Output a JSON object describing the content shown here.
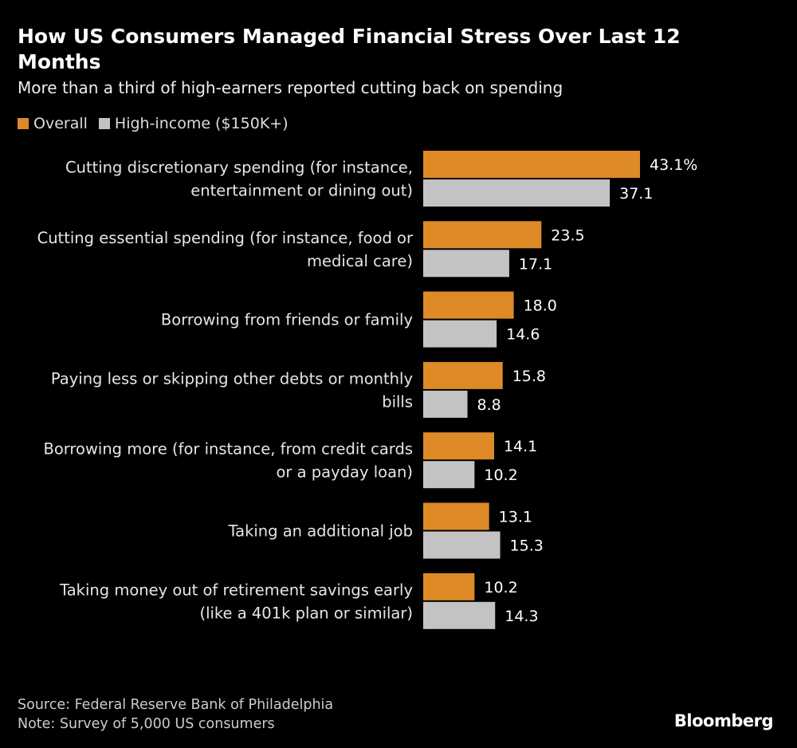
{
  "title": "How US Consumers Managed Financial Stress Over Last 12 Months",
  "subtitle": "More than a third of high-earners reported cutting back on spending",
  "source": "Source: Federal Reserve Bank of Philadelphia",
  "note": "Note: Survey of 5,000 US consumers",
  "logo": "Bloomberg",
  "chart_data": {
    "type": "bar",
    "orientation": "horizontal",
    "title": "How US Consumers Managed Financial Stress Over Last 12 Months",
    "subtitle": "More than a third of high-earners reported cutting back on spending",
    "legend_position": "top-left",
    "grid": false,
    "unit": "%",
    "xlim": [
      0,
      45
    ],
    "categories": [
      [
        "Cutting discretionary spending (for instance,",
        "entertainment or dining out)"
      ],
      [
        "Cutting essential spending (for instance, food or",
        "medical care)"
      ],
      [
        "Borrowing from friends or family"
      ],
      [
        "Paying less or skipping other debts or monthly",
        "bills"
      ],
      [
        "Borrowing more (for instance, from credit cards",
        "or a payday loan)"
      ],
      [
        "Taking an additional job"
      ],
      [
        "Taking money out of retirement savings early",
        "(like a 401k plan or similar)"
      ]
    ],
    "series": [
      {
        "name": "Overall",
        "color": "#DD8A27",
        "values": [
          43.1,
          23.5,
          18.0,
          15.8,
          14.1,
          13.1,
          10.2
        ],
        "labels": [
          "43.1%",
          "23.5",
          "18.0",
          "15.8",
          "14.1",
          "13.1",
          "10.2"
        ]
      },
      {
        "name": "High-income ($150K+)",
        "color": "#C3C3C3",
        "values": [
          37.1,
          17.1,
          14.6,
          8.8,
          10.2,
          15.3,
          14.3
        ],
        "labels": [
          "37.1",
          "17.1",
          "14.6",
          "8.8",
          "10.2",
          "15.3",
          "14.3"
        ]
      }
    ]
  }
}
